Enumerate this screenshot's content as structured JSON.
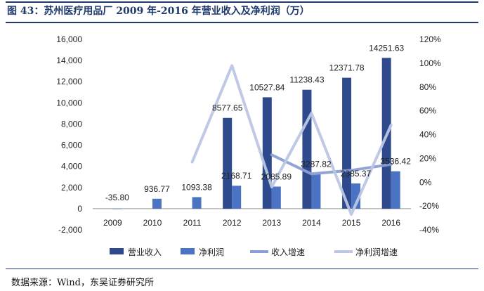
{
  "header": {
    "title": "图 43：苏州医疗用品厂 2009 年-2016 年营业收入及净利润（万）"
  },
  "footer": {
    "source": "数据来源：Wind，东吴证券研究所"
  },
  "chart_data": {
    "type": "bar",
    "title": "苏州医疗用品厂 2009 年-2016 年营业收入及净利润（万）",
    "categories": [
      "2009",
      "2010",
      "2011",
      "2012",
      "2013",
      "2014",
      "2015",
      "2016"
    ],
    "series": [
      {
        "name": "营业收入",
        "kind": "bar",
        "axis": "left",
        "color": "#2e4a8c",
        "values": [
          null,
          null,
          null,
          8577.65,
          10527.84,
          11238.43,
          12371.78,
          14251.63
        ],
        "labels": [
          "",
          "",
          "",
          "8577.65",
          "10527.84",
          "11238.43",
          "12371.78",
          "14251.63"
        ]
      },
      {
        "name": "净利润",
        "kind": "bar",
        "axis": "left",
        "color": "#4a73c4",
        "values": [
          -35.8,
          936.77,
          1093.38,
          2168.71,
          2085.89,
          3287.82,
          2385.37,
          3536.42
        ],
        "labels": [
          "-35.80",
          "936.77",
          "1093.38",
          "2168.71",
          "2085.89",
          "3287.82",
          "2385.37",
          "3536.42"
        ]
      },
      {
        "name": "收入增速",
        "kind": "line",
        "axis": "right",
        "unit": "%",
        "color": "#8c9fd4",
        "values": [
          null,
          null,
          null,
          null,
          23,
          7,
          10,
          15
        ]
      },
      {
        "name": "净利润增速",
        "kind": "line",
        "axis": "right",
        "unit": "%",
        "color": "#bcc6e4",
        "values": [
          null,
          null,
          17,
          98,
          -4,
          58,
          -27,
          48
        ]
      }
    ],
    "y_left": {
      "min": -2000,
      "max": 16000,
      "step": 2000,
      "ticks": [
        "-2,000",
        "0",
        "2,000",
        "4,000",
        "6,000",
        "8,000",
        "10,000",
        "12,000",
        "14,000",
        "16,000"
      ]
    },
    "y_right": {
      "min": -40,
      "max": 120,
      "step": 20,
      "ticks": [
        "-40%",
        "-20%",
        "0%",
        "20%",
        "40%",
        "60%",
        "80%",
        "100%",
        "120%"
      ]
    },
    "legend": {
      "position": "bottom"
    }
  }
}
